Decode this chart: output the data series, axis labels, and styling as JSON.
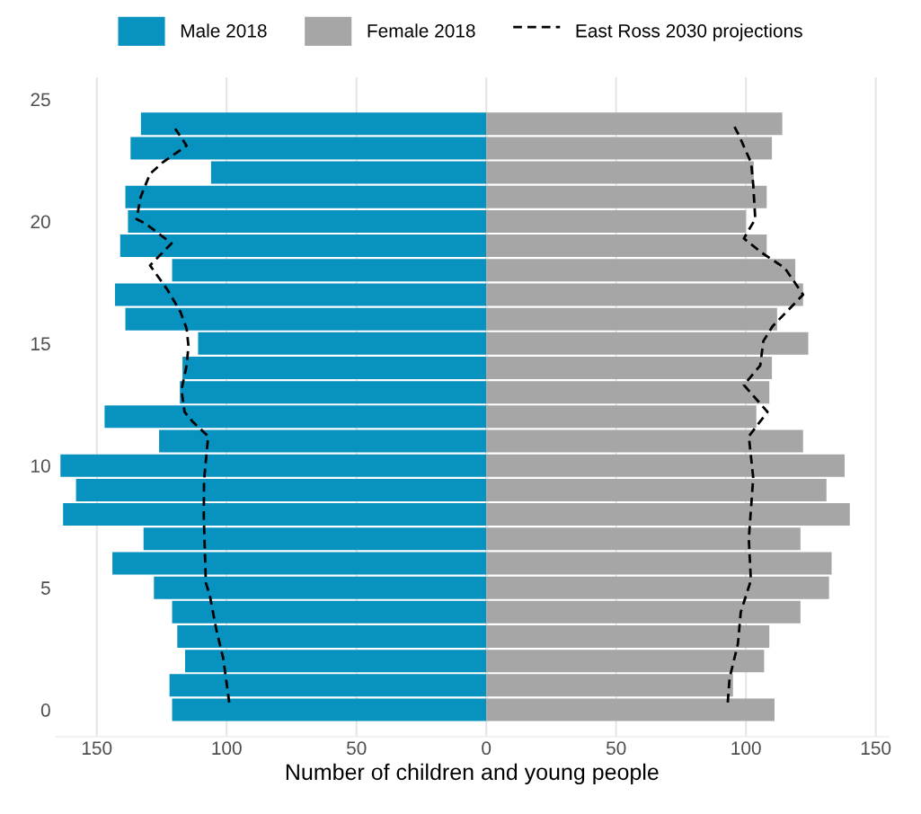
{
  "chart_data": {
    "type": "bar",
    "orientation": "horizontal",
    "stacked": true,
    "xlabel": "Number of children and young people",
    "xlim": [
      -166,
      155
    ],
    "xticks": [
      {
        "value": -150,
        "label": "150"
      },
      {
        "value": -100,
        "label": "100"
      },
      {
        "value": -50,
        "label": "50"
      },
      0,
      50,
      100,
      150
    ],
    "ylim": [
      -1.1,
      25.9
    ],
    "yticks": [
      0,
      5,
      10,
      15,
      20,
      25
    ],
    "grid": "x",
    "legend": "top",
    "series": [
      {
        "name": "Male 2018",
        "color": "#0892c0",
        "x": [
          0,
          1,
          2,
          3,
          4,
          5,
          6,
          7,
          8,
          9,
          10,
          11,
          12,
          13,
          14,
          15,
          16,
          17,
          18,
          19,
          20,
          21,
          22,
          23,
          24
        ],
        "values": [
          -121,
          -122,
          -116,
          -119,
          -121,
          -128,
          -144,
          -132,
          -163,
          -158,
          -164,
          -126,
          -147,
          -118,
          -117,
          -111,
          -139,
          -143,
          -121,
          -141,
          -138,
          -139,
          -106,
          -137,
          -133
        ]
      },
      {
        "name": "Female 2018",
        "color": "#a6a6a6",
        "x": [
          0,
          1,
          2,
          3,
          4,
          5,
          6,
          7,
          8,
          9,
          10,
          11,
          12,
          13,
          14,
          15,
          16,
          17,
          18,
          19,
          20,
          21,
          22,
          23,
          24
        ],
        "values": [
          111,
          95,
          107,
          109,
          121,
          132,
          133,
          121,
          140,
          131,
          138,
          122,
          104,
          109,
          110,
          124,
          112,
          122,
          119,
          108,
          100,
          108,
          103,
          110,
          114
        ]
      },
      {
        "name": "East Ross 2030 projections",
        "type": "line",
        "line_style": "dashed",
        "color": "#000000",
        "x": [
          0.3,
          2.1,
          3.3,
          4.7,
          5.2,
          7.9,
          9.4,
          11.2,
          11.8,
          12.2,
          13.1,
          14.1,
          14.9,
          15.6,
          16.3,
          17.2,
          18.2,
          19.1,
          19.9,
          20.1,
          21.0,
          21.95,
          22.4,
          23.1,
          23.8
        ],
        "values": [
          -99,
          -101.3,
          -104,
          -106.5,
          -108,
          -108.8,
          -108.7,
          -107.1,
          -113.1,
          -116.2,
          -117.4,
          -115.4,
          -114.7,
          -115.4,
          -117.8,
          -122.8,
          -129.5,
          -121.2,
          -131.1,
          -134.7,
          -133.1,
          -129.5,
          -124.8,
          -115.4,
          -119.8
        ]
      },
      {
        "type": "line",
        "line_style": "dashed",
        "color": "#000000",
        "x": [
          0.3,
          1.3,
          2.7,
          4.0,
          5.3,
          7.0,
          9.5,
          11.2,
          12.2,
          13.3,
          14.1,
          15.1,
          15.7,
          17.0,
          18.1,
          18.7,
          19.3,
          19.6,
          20.1,
          21.5,
          22.4,
          23.5,
          24.0
        ],
        "values": [
          93,
          93.7,
          96.9,
          98,
          101.9,
          101.1,
          102.8,
          101.1,
          108.3,
          99.2,
          105.5,
          106.7,
          110.2,
          122,
          114.9,
          106.3,
          99.2,
          100.8,
          103.6,
          102.8,
          102,
          97.4,
          95
        ]
      }
    ]
  }
}
